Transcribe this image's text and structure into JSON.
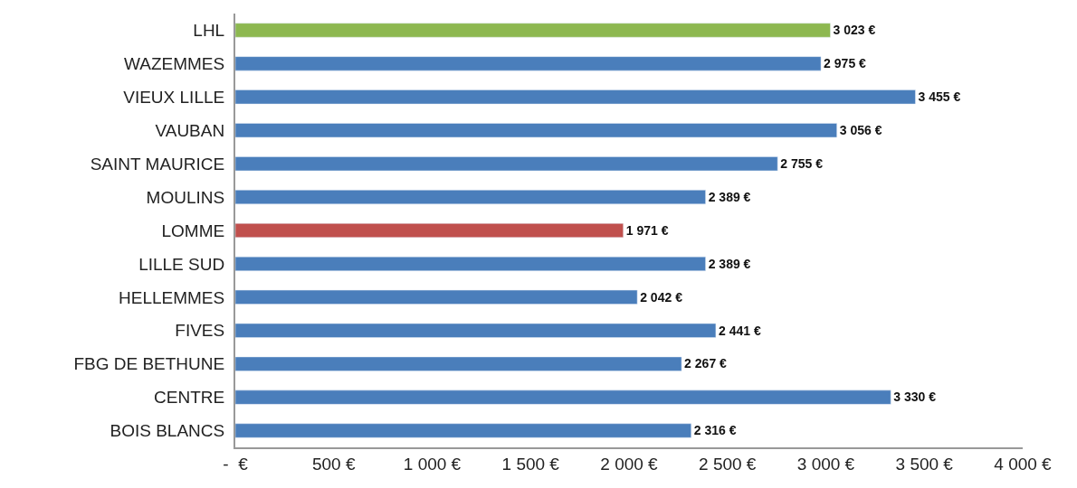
{
  "chart_data": {
    "type": "bar",
    "orientation": "horizontal",
    "categories": [
      "LHL",
      "WAZEMMES",
      "VIEUX LILLE",
      "VAUBAN",
      "SAINT MAURICE",
      "MOULINS",
      "LOMME",
      "LILLE SUD",
      "HELLEMMES",
      "FIVES",
      "FBG DE BETHUNE",
      "CENTRE",
      "BOIS BLANCS"
    ],
    "values": [
      3023,
      2975,
      3455,
      3056,
      2755,
      2389,
      1971,
      2389,
      2042,
      2441,
      2267,
      3330,
      2316
    ],
    "value_labels": [
      "3 023 €",
      "2 975 €",
      "3 455 €",
      "3 056 €",
      "2 755 €",
      "2 389 €",
      "1 971 €",
      "2 389 €",
      "2 042 €",
      "2 441 €",
      "2 267 €",
      "3 330 €",
      "2 316 €"
    ],
    "colors": [
      "#8db850",
      "#4a7ebb",
      "#4a7ebb",
      "#4a7ebb",
      "#4a7ebb",
      "#4a7ebb",
      "#c0504d",
      "#4a7ebb",
      "#4a7ebb",
      "#4a7ebb",
      "#4a7ebb",
      "#4a7ebb",
      "#4a7ebb"
    ],
    "xlim": [
      0,
      4000
    ],
    "xticks": [
      {
        "value": 0,
        "label": "-  €"
      },
      {
        "value": 500,
        "label": "500 €"
      },
      {
        "value": 1000,
        "label": "1 000 €"
      },
      {
        "value": 1500,
        "label": "1 500 €"
      },
      {
        "value": 2000,
        "label": "2 000 €"
      },
      {
        "value": 2500,
        "label": "2 500 €"
      },
      {
        "value": 3000,
        "label": "3 000 €"
      },
      {
        "value": 3500,
        "label": "3 500 €"
      },
      {
        "value": 4000,
        "label": "4 000 €"
      }
    ],
    "legend": false
  }
}
